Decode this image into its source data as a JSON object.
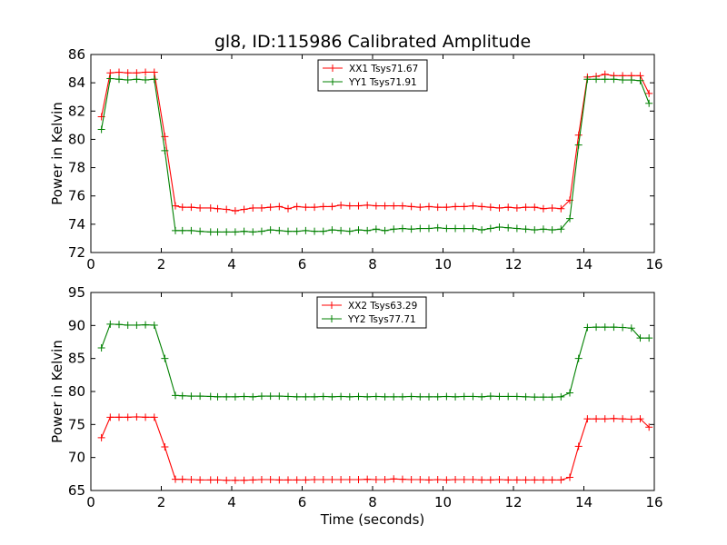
{
  "chart_data": [
    {
      "type": "line",
      "title": "gl8, ID:115986 Calibrated Amplitude",
      "xlabel": "",
      "ylabel": "Power in Kelvin",
      "xlim": [
        0,
        16
      ],
      "ylim": [
        72,
        86
      ],
      "xticks": [
        0,
        2,
        4,
        6,
        8,
        10,
        12,
        14,
        16
      ],
      "yticks": [
        72,
        74,
        76,
        78,
        80,
        82,
        84,
        86
      ],
      "legend": "top-center",
      "x": [
        0.3,
        0.55,
        0.8,
        1.05,
        1.3,
        1.55,
        1.8,
        2.1,
        2.4,
        2.6,
        2.85,
        3.1,
        3.4,
        3.6,
        3.85,
        4.1,
        4.35,
        4.6,
        4.85,
        5.1,
        5.35,
        5.6,
        5.85,
        6.1,
        6.35,
        6.6,
        6.85,
        7.1,
        7.35,
        7.6,
        7.85,
        8.1,
        8.35,
        8.6,
        8.85,
        9.1,
        9.35,
        9.6,
        9.85,
        10.1,
        10.35,
        10.6,
        10.85,
        11.1,
        11.35,
        11.6,
        11.85,
        12.1,
        12.35,
        12.6,
        12.85,
        13.1,
        13.35,
        13.6,
        13.85,
        14.1,
        14.35,
        14.6,
        14.85,
        15.1,
        15.35,
        15.6,
        15.85
      ],
      "series": [
        {
          "name": "XX1 Tsys71.67",
          "color": "#ff0000",
          "values": [
            81.6,
            84.7,
            84.75,
            84.7,
            84.7,
            84.75,
            84.75,
            80.2,
            75.3,
            75.2,
            75.2,
            75.15,
            75.15,
            75.1,
            75.05,
            74.95,
            75.05,
            75.15,
            75.15,
            75.2,
            75.25,
            75.1,
            75.25,
            75.2,
            75.2,
            75.25,
            75.25,
            75.35,
            75.3,
            75.3,
            75.35,
            75.3,
            75.3,
            75.3,
            75.3,
            75.25,
            75.2,
            75.25,
            75.2,
            75.2,
            75.25,
            75.25,
            75.3,
            75.25,
            75.2,
            75.15,
            75.2,
            75.15,
            75.2,
            75.2,
            75.1,
            75.15,
            75.1,
            75.7,
            80.3,
            84.4,
            84.45,
            84.6,
            84.5,
            84.5,
            84.5,
            84.5,
            83.25
          ]
        },
        {
          "name": "YY1 Tsys71.91",
          "color": "#008000",
          "values": [
            80.7,
            84.3,
            84.25,
            84.2,
            84.25,
            84.2,
            84.25,
            79.2,
            73.55,
            73.55,
            73.55,
            73.5,
            73.45,
            73.45,
            73.45,
            73.45,
            73.5,
            73.45,
            73.5,
            73.6,
            73.55,
            73.5,
            73.5,
            73.55,
            73.5,
            73.5,
            73.6,
            73.55,
            73.5,
            73.6,
            73.55,
            73.65,
            73.55,
            73.65,
            73.7,
            73.65,
            73.7,
            73.7,
            73.75,
            73.7,
            73.7,
            73.7,
            73.7,
            73.6,
            73.7,
            73.8,
            73.75,
            73.7,
            73.65,
            73.6,
            73.65,
            73.6,
            73.65,
            74.4,
            79.6,
            84.25,
            84.25,
            84.25,
            84.25,
            84.2,
            84.2,
            84.15,
            82.55
          ]
        }
      ]
    },
    {
      "type": "line",
      "title": "",
      "xlabel": "Time (seconds)",
      "ylabel": "Power in Kelvin",
      "xlim": [
        0,
        16
      ],
      "ylim": [
        65,
        95
      ],
      "xticks": [
        0,
        2,
        4,
        6,
        8,
        10,
        12,
        14,
        16
      ],
      "yticks": [
        65,
        70,
        75,
        80,
        85,
        90,
        95
      ],
      "legend": "top-center",
      "x": [
        0.3,
        0.55,
        0.8,
        1.05,
        1.3,
        1.55,
        1.8,
        2.1,
        2.4,
        2.6,
        2.85,
        3.1,
        3.4,
        3.6,
        3.85,
        4.1,
        4.35,
        4.6,
        4.85,
        5.1,
        5.35,
        5.6,
        5.85,
        6.1,
        6.35,
        6.6,
        6.85,
        7.1,
        7.35,
        7.6,
        7.85,
        8.1,
        8.35,
        8.6,
        8.85,
        9.1,
        9.35,
        9.6,
        9.85,
        10.1,
        10.35,
        10.6,
        10.85,
        11.1,
        11.35,
        11.6,
        11.85,
        12.1,
        12.35,
        12.6,
        12.85,
        13.1,
        13.35,
        13.6,
        13.85,
        14.1,
        14.35,
        14.6,
        14.85,
        15.1,
        15.35,
        15.6,
        15.85
      ],
      "series": [
        {
          "name": "XX2 Tsys63.29",
          "color": "#ff0000",
          "values": [
            73.0,
            76.1,
            76.1,
            76.1,
            76.15,
            76.1,
            76.1,
            71.6,
            66.7,
            66.7,
            66.65,
            66.6,
            66.6,
            66.6,
            66.55,
            66.55,
            66.55,
            66.6,
            66.65,
            66.65,
            66.6,
            66.6,
            66.6,
            66.6,
            66.65,
            66.65,
            66.65,
            66.65,
            66.65,
            66.65,
            66.7,
            66.65,
            66.65,
            66.75,
            66.7,
            66.65,
            66.65,
            66.6,
            66.65,
            66.6,
            66.65,
            66.65,
            66.65,
            66.6,
            66.6,
            66.65,
            66.6,
            66.6,
            66.6,
            66.6,
            66.6,
            66.6,
            66.6,
            67.0,
            71.7,
            75.85,
            75.85,
            75.85,
            75.9,
            75.85,
            75.8,
            75.85,
            74.6
          ]
        },
        {
          "name": "YY2 Tsys77.71",
          "color": "#008000",
          "values": [
            86.6,
            90.2,
            90.15,
            90.05,
            90.05,
            90.1,
            90.05,
            85.0,
            79.4,
            79.35,
            79.3,
            79.3,
            79.25,
            79.2,
            79.2,
            79.2,
            79.25,
            79.2,
            79.3,
            79.3,
            79.3,
            79.25,
            79.2,
            79.2,
            79.2,
            79.25,
            79.2,
            79.25,
            79.2,
            79.25,
            79.2,
            79.25,
            79.2,
            79.2,
            79.2,
            79.25,
            79.2,
            79.2,
            79.2,
            79.25,
            79.2,
            79.25,
            79.25,
            79.2,
            79.3,
            79.25,
            79.25,
            79.25,
            79.2,
            79.15,
            79.15,
            79.15,
            79.2,
            79.8,
            85.0,
            89.7,
            89.75,
            89.75,
            89.75,
            89.7,
            89.6,
            88.1,
            88.1
          ]
        }
      ]
    }
  ]
}
